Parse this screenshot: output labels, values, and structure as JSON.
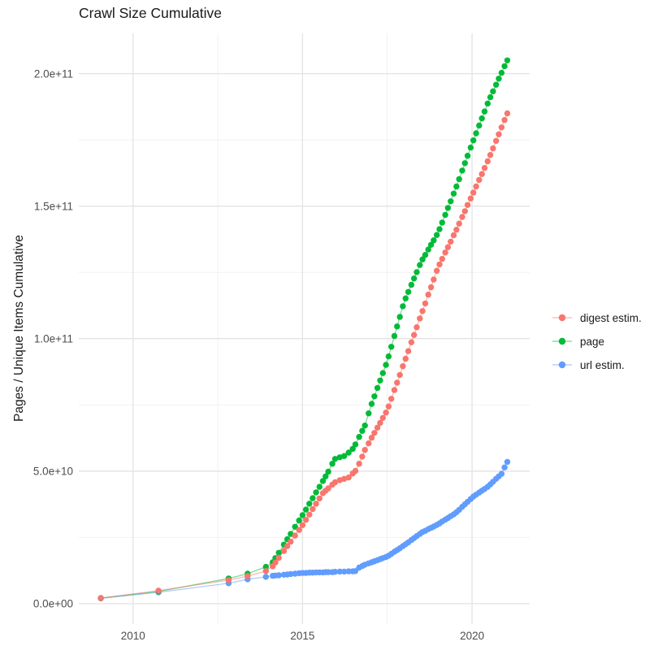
{
  "title": "Crawl Size Cumulative",
  "y_axis_title": "Pages / Unique Items Cumulative",
  "legend": {
    "position": "right",
    "items": [
      {
        "label": "digest estim.",
        "color": "#F8766D"
      },
      {
        "label": "page",
        "color": "#00BA38"
      },
      {
        "label": "url estim.",
        "color": "#619CFF"
      }
    ]
  },
  "chart_data": {
    "type": "line",
    "title": "Crawl Size Cumulative",
    "xlabel": "",
    "ylabel": "Pages / Unique Items Cumulative",
    "grid": true,
    "legend_position": "right",
    "value_unit": "items, values given in billions (1e9)",
    "xlim": [
      2008.4,
      2021.7
    ],
    "ylim_1e9": [
      -7.7,
      215.2
    ],
    "x_ticks": [
      {
        "year": 2010,
        "label": "2010"
      },
      {
        "year": 2015,
        "label": "2015"
      },
      {
        "year": 2020,
        "label": "2020"
      }
    ],
    "y_ticks": [
      {
        "value_1e9": 0,
        "label": "0.0e+00"
      },
      {
        "value_1e9": 50,
        "label": "5.0e+10"
      },
      {
        "value_1e9": 100,
        "label": "1.0e+11"
      },
      {
        "value_1e9": 150,
        "label": "1.5e+11"
      },
      {
        "value_1e9": 200,
        "label": "2.0e+11"
      }
    ],
    "x_minor": [
      2012.5,
      2017.5
    ],
    "y_minor_1e9": [
      25,
      75,
      125,
      175
    ],
    "x_years": [
      2009.05,
      2010.75,
      2012.82,
      2013.38,
      2013.92,
      2014.12,
      2014.2,
      2014.3,
      2014.45,
      2014.55,
      2014.65,
      2014.78,
      2014.9,
      2015.0,
      2015.1,
      2015.2,
      2015.3,
      2015.4,
      2015.5,
      2015.6,
      2015.68,
      2015.76,
      2015.88,
      2015.96,
      2016.1,
      2016.23,
      2016.36,
      2016.48,
      2016.56,
      2016.67,
      2016.76,
      2016.84,
      2016.95,
      2017.04,
      2017.12,
      2017.21,
      2017.29,
      2017.37,
      2017.46,
      2017.54,
      2017.62,
      2017.71,
      2017.79,
      2017.87,
      2017.96,
      2018.04,
      2018.12,
      2018.21,
      2018.29,
      2018.37,
      2018.46,
      2018.54,
      2018.62,
      2018.71,
      2018.79,
      2018.87,
      2018.96,
      2019.04,
      2019.12,
      2019.21,
      2019.29,
      2019.37,
      2019.46,
      2019.54,
      2019.62,
      2019.71,
      2019.79,
      2019.87,
      2019.96,
      2020.04,
      2020.12,
      2020.21,
      2020.29,
      2020.37,
      2020.46,
      2020.54,
      2020.62,
      2020.71,
      2020.79,
      2020.87,
      2020.96,
      2021.04
    ],
    "series": [
      {
        "id": "digest-estim",
        "name": "digest estim.",
        "color": "#F8766D",
        "values_1e9": [
          2.1,
          4.9,
          8.9,
          10.4,
          12.3,
          14.1,
          15.5,
          17.3,
          19.9,
          21.7,
          23.4,
          25.7,
          27.8,
          29.6,
          31.6,
          33.6,
          35.7,
          37.7,
          39.7,
          41.7,
          42.6,
          43.5,
          44.9,
          45.8,
          46.6,
          47.1,
          47.6,
          49.1,
          50.1,
          52.8,
          55.5,
          58.0,
          60.5,
          62.6,
          64.4,
          66.4,
          68.2,
          70.1,
          72.1,
          74.4,
          77.3,
          80.6,
          83.4,
          86.3,
          89.6,
          92.4,
          95.3,
          98.6,
          101.4,
          104.3,
          107.6,
          110.4,
          113.3,
          116.6,
          119.4,
          122.3,
          125.6,
          128.0,
          130.1,
          132.5,
          134.5,
          136.6,
          139.0,
          141.1,
          143.4,
          145.9,
          148.1,
          150.4,
          152.9,
          155.1,
          157.4,
          159.9,
          162.1,
          164.4,
          166.9,
          169.3,
          171.8,
          174.6,
          177.1,
          179.7,
          182.5,
          185.0
        ]
      },
      {
        "id": "page",
        "name": "page",
        "color": "#00BA38",
        "values_1e9": [
          2.1,
          4.6,
          9.5,
          11.3,
          13.9,
          15.6,
          17.2,
          19.2,
          22.3,
          24.3,
          26.3,
          29.0,
          31.4,
          33.4,
          35.5,
          37.7,
          39.8,
          42.0,
          44.1,
          46.3,
          48.0,
          49.8,
          52.8,
          54.6,
          55.2,
          55.7,
          57.0,
          58.4,
          60.1,
          62.9,
          65.2,
          67.2,
          71.8,
          75.4,
          78.2,
          81.4,
          84.2,
          87.0,
          90.1,
          93.3,
          96.9,
          101.0,
          104.6,
          108.2,
          112.2,
          115.2,
          117.6,
          120.3,
          122.7,
          125.1,
          127.8,
          129.9,
          131.6,
          133.6,
          135.4,
          137.1,
          139.1,
          141.3,
          143.8,
          146.7,
          149.3,
          151.8,
          154.7,
          157.4,
          160.2,
          163.4,
          166.2,
          169.0,
          172.1,
          174.8,
          177.5,
          180.4,
          183.1,
          185.7,
          188.7,
          191.1,
          193.3,
          195.8,
          198.1,
          200.3,
          202.8,
          205.0
        ]
      },
      {
        "id": "url-estim",
        "name": "url estim.",
        "color": "#619CFF",
        "values_1e9": [
          2.0,
          4.3,
          7.7,
          9.2,
          10.1,
          10.5,
          10.6,
          10.7,
          10.9,
          11.0,
          11.2,
          11.3,
          11.5,
          11.6,
          11.6,
          11.7,
          11.7,
          11.8,
          11.8,
          11.8,
          11.9,
          11.9,
          11.9,
          12.0,
          12.1,
          12.1,
          12.2,
          12.2,
          12.3,
          13.6,
          14.2,
          14.7,
          15.2,
          15.6,
          16.0,
          16.4,
          16.8,
          17.2,
          17.6,
          18.1,
          18.8,
          19.6,
          20.2,
          20.9,
          21.7,
          22.4,
          23.1,
          24.0,
          24.7,
          25.5,
          26.3,
          27.0,
          27.5,
          28.1,
          28.6,
          29.1,
          29.7,
          30.3,
          31.0,
          31.7,
          32.3,
          33.0,
          33.7,
          34.5,
          35.4,
          36.5,
          37.5,
          38.4,
          39.5,
          40.4,
          41.1,
          41.9,
          42.6,
          43.3,
          44.1,
          45.0,
          46.0,
          47.1,
          48.0,
          49.0,
          51.4,
          53.5
        ]
      }
    ]
  }
}
